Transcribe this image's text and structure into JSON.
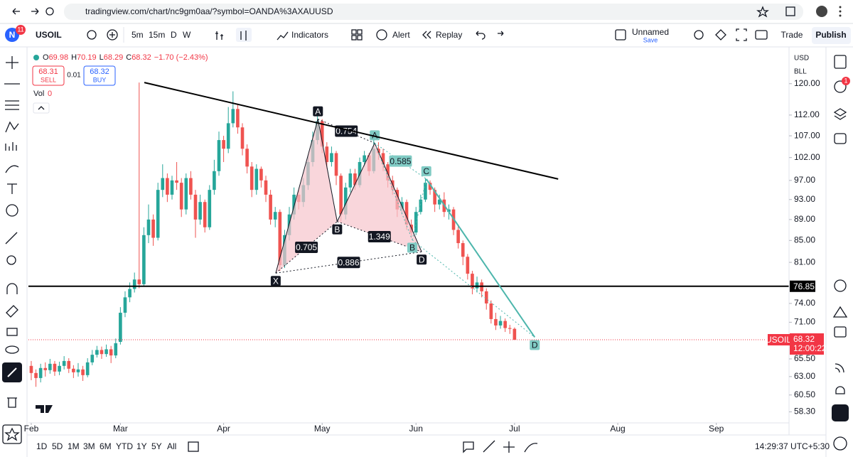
{
  "browser": {
    "url": "tradingview.com/chart/nc9gm0aa/?symbol=OANDA%3AXAUUSD"
  },
  "toolbar": {
    "logo": "N",
    "badge": "11",
    "symbol": "USOIL",
    "intervals": [
      "5m",
      "15m",
      "D",
      "W"
    ],
    "indicators": "Indicators",
    "alert": "Alert",
    "replay": "Replay",
    "layout_name": "Unnamed",
    "save": "Save",
    "trade": "Trade",
    "publish": "Publish"
  },
  "legend": {
    "ohlc": [
      "O",
      "69.98",
      "H",
      "70.19",
      "L",
      "68.29",
      "C",
      "68.32",
      "−1.70 (−2.43%)"
    ],
    "sell_price": "68.31",
    "sell": "SELL",
    "spread": "0.01",
    "buy_price": "68.32",
    "buy": "BUY",
    "volume_label": "Vol",
    "volume": "0"
  },
  "price_axis": {
    "currency": "USD",
    "unit": "BLL"
  },
  "right_sidebar": {
    "badge": "1"
  },
  "bottom_bar": {
    "ranges": [
      "1D",
      "5D",
      "1M",
      "3M",
      "6M",
      "YTD",
      "1Y",
      "5Y",
      "All"
    ],
    "clock": "14:29:37 UTC+5:30"
  },
  "chart_data": {
    "type": "candlestick",
    "log_scale": true,
    "grid": false,
    "up_color": "#26a69a",
    "down_color": "#ef5350",
    "xlim": [
      -0.6,
      161.5
    ],
    "ylim": [
      56.9,
      129.3
    ],
    "xticks": [
      {
        "value": 0,
        "label": "Feb"
      },
      {
        "value": 19,
        "label": "Mar"
      },
      {
        "value": 41,
        "label": "Apr"
      },
      {
        "value": 62,
        "label": "May"
      },
      {
        "value": 82,
        "label": "Jun"
      },
      {
        "value": 103,
        "label": "Jul"
      },
      {
        "value": 125,
        "label": "Aug"
      },
      {
        "value": 146,
        "label": "Sep"
      }
    ],
    "yticks": [
      {
        "value": 120,
        "label": "120.00"
      },
      {
        "value": 112,
        "label": "112.00"
      },
      {
        "value": 107,
        "label": "107.00"
      },
      {
        "value": 102,
        "label": "102.00"
      },
      {
        "value": 97,
        "label": "97.00"
      },
      {
        "value": 93,
        "label": "93.00"
      },
      {
        "value": 89,
        "label": "89.00"
      },
      {
        "value": 85,
        "label": "85.00"
      },
      {
        "value": 81,
        "label": "81.00"
      },
      {
        "value": 74,
        "label": "74.00"
      },
      {
        "value": 71,
        "label": "71.00"
      },
      {
        "value": 65.5,
        "label": "65.50"
      },
      {
        "value": 63,
        "label": "63.00"
      },
      {
        "value": 60.5,
        "label": "60.50"
      },
      {
        "value": 58.3,
        "label": "58.30"
      }
    ],
    "x": [
      0,
      1,
      2,
      3,
      4,
      5,
      6,
      7,
      8,
      9,
      10,
      11,
      12,
      13,
      14,
      15,
      16,
      17,
      18,
      19,
      20,
      21,
      22,
      23,
      24,
      25,
      26,
      27,
      28,
      29,
      30,
      31,
      32,
      33,
      34,
      35,
      36,
      37,
      38,
      39,
      40,
      41,
      42,
      43,
      44,
      45,
      46,
      47,
      48,
      49,
      50,
      51,
      52,
      53,
      54,
      55,
      56,
      57,
      58,
      59,
      60,
      61,
      62,
      63,
      64,
      65,
      66,
      67,
      68,
      69,
      70,
      71,
      72,
      73,
      74,
      75,
      76,
      77,
      78,
      79,
      80,
      81,
      82,
      83,
      84,
      85,
      86,
      87,
      88,
      89,
      90,
      91,
      92,
      93,
      94,
      95,
      96,
      97,
      98,
      99,
      100,
      101,
      102,
      103
    ],
    "open": [
      64.5,
      63.5,
      62.8,
      64.2,
      63.9,
      64.8,
      63.7,
      64.5,
      65.2,
      64.1,
      63.6,
      64.0,
      63.2,
      65.0,
      66.1,
      66.8,
      66.2,
      66.9,
      66.0,
      68.0,
      72.5,
      75.0,
      76.4,
      78.0,
      77.2,
      86.0,
      89.0,
      85.5,
      95.0,
      97.5,
      94.0,
      97.0,
      96.5,
      91.0,
      97.5,
      94.0,
      89.0,
      92.5,
      87.5,
      95.0,
      99.0,
      106.0,
      104.0,
      110.0,
      113.5,
      109.0,
      104.0,
      100.0,
      95.0,
      99.5,
      97.0,
      94.0,
      89.0,
      90.5,
      80.5,
      86.0,
      90.0,
      94.0,
      92.5,
      96.0,
      101.0,
      106.0,
      110.5,
      104.5,
      101.0,
      103.0,
      98.0,
      90.0,
      95.5,
      98.5,
      96.0,
      101.0,
      102.5,
      99.0,
      104.0,
      103.0,
      100.5,
      97.0,
      95.0,
      91.0,
      92.5,
      88.0,
      86.5,
      90.5,
      93.0,
      96.5,
      95.0,
      92.0,
      93.0,
      90.5,
      91.0,
      87.0,
      84.5,
      82.0,
      79.0,
      76.5,
      77.5,
      76.0,
      74.0,
      71.5,
      70.5,
      71.2,
      70.1,
      69.98
    ],
    "high": [
      65.2,
      64.0,
      64.8,
      65.0,
      65.5,
      65.2,
      65.1,
      65.9,
      65.6,
      64.6,
      64.9,
      64.5,
      65.6,
      66.8,
      67.4,
      67.3,
      67.6,
      67.4,
      68.5,
      73.4,
      76.0,
      77.5,
      79.2,
      120.3,
      87.5,
      92.0,
      90.0,
      96.5,
      100.5,
      98.5,
      98.0,
      101.0,
      97.5,
      98.5,
      99.0,
      95.0,
      94.0,
      93.0,
      96.0,
      101.5,
      108.0,
      107.0,
      114.0,
      118.0,
      114.5,
      110.0,
      105.0,
      101.0,
      100.5,
      100.0,
      98.0,
      95.0,
      91.5,
      91.0,
      87.0,
      91.5,
      95.5,
      95.0,
      97.5,
      102.5,
      108.0,
      112.0,
      111.0,
      105.5,
      104.5,
      103.5,
      98.5,
      96.5,
      99.5,
      99.5,
      102.0,
      103.5,
      103.0,
      106.5,
      105.5,
      104.0,
      101.0,
      98.0,
      95.5,
      93.5,
      93.0,
      89.0,
      91.5,
      94.0,
      97.5,
      97.0,
      95.5,
      94.0,
      94.5,
      92.0,
      91.5,
      88.0,
      85.0,
      82.5,
      79.5,
      78.5,
      78.0,
      76.5,
      74.5,
      72.5,
      72.0,
      71.6,
      70.6,
      70.19
    ],
    "low": [
      62.5,
      61.6,
      62.2,
      63.0,
      63.4,
      63.1,
      63.2,
      64.0,
      63.5,
      62.8,
      63.0,
      62.4,
      62.9,
      64.6,
      65.7,
      65.5,
      65.8,
      64.9,
      65.6,
      67.6,
      71.8,
      74.2,
      75.8,
      76.5,
      76.9,
      84.5,
      84.0,
      85.0,
      93.5,
      92.5,
      93.0,
      95.0,
      89.5,
      90.0,
      93.0,
      85.5,
      88.0,
      86.5,
      87.0,
      94.0,
      98.0,
      101.0,
      103.0,
      109.0,
      107.5,
      102.5,
      98.5,
      93.5,
      94.0,
      95.5,
      92.5,
      88.0,
      87.5,
      79.5,
      80.0,
      85.0,
      89.0,
      91.0,
      91.5,
      95.0,
      100.0,
      105.0,
      103.0,
      99.5,
      100.0,
      96.0,
      88.5,
      89.0,
      94.5,
      95.0,
      95.5,
      100.0,
      98.0,
      98.5,
      101.5,
      99.0,
      95.5,
      94.0,
      89.5,
      90.0,
      87.0,
      85.5,
      86.0,
      90.0,
      92.5,
      94.0,
      90.5,
      91.0,
      89.5,
      89.0,
      86.0,
      83.5,
      80.5,
      78.0,
      75.5,
      75.8,
      75.0,
      73.0,
      70.8,
      69.8,
      70.0,
      69.5,
      69.2,
      68.29
    ],
    "close": [
      63.5,
      62.8,
      64.2,
      63.9,
      64.8,
      63.7,
      64.5,
      65.2,
      64.1,
      63.6,
      64.0,
      63.2,
      65.0,
      66.1,
      66.8,
      66.2,
      66.9,
      66.0,
      67.8,
      72.5,
      75.0,
      76.4,
      78.0,
      77.2,
      86.0,
      89.0,
      85.5,
      95.0,
      97.5,
      94.0,
      97.0,
      96.5,
      91.0,
      97.5,
      94.0,
      89.0,
      92.5,
      87.5,
      95.0,
      99.0,
      106.0,
      104.0,
      110.0,
      113.5,
      109.0,
      104.0,
      100.0,
      95.0,
      99.5,
      97.0,
      94.0,
      89.0,
      90.5,
      80.5,
      86.0,
      90.0,
      94.0,
      92.5,
      96.0,
      101.0,
      106.0,
      110.5,
      104.5,
      101.0,
      103.0,
      98.0,
      90.0,
      95.5,
      98.5,
      96.0,
      101.0,
      102.5,
      99.0,
      104.0,
      103.0,
      100.5,
      97.0,
      95.0,
      91.0,
      92.5,
      88.0,
      86.5,
      90.5,
      93.0,
      96.5,
      95.0,
      92.0,
      93.0,
      90.5,
      91.0,
      87.0,
      84.5,
      82.0,
      79.0,
      76.5,
      77.5,
      76.0,
      74.0,
      71.5,
      70.5,
      71.2,
      70.1,
      69.98,
      68.32
    ],
    "trend_lines": [
      {
        "color": "#000000",
        "points": [
          {
            "x": 24.1,
            "y": 120.3
          },
          {
            "x": 112.3,
            "y": 97.3
          }
        ]
      }
    ],
    "horizontal_line": {
      "value": 76.85,
      "color": "#000000"
    },
    "price_tag": {
      "symbol": "USOIL",
      "value": 68.32,
      "countdown": "12:00:22",
      "color": "#f23645"
    },
    "patterns": [
      {
        "line_color": "#131722",
        "fill_color": "#f7c5cc",
        "label_color": "#131722",
        "points": [
          {
            "label": "X",
            "x": 52.1,
            "y": 79.1
          },
          {
            "label": "A",
            "x": 61.1,
            "y": 111.0
          },
          {
            "label": "B",
            "x": 65.2,
            "y": 88.6
          },
          {
            "label": null,
            "x": 73.2,
            "y": 105.3
          },
          {
            "label": "D",
            "x": 83.2,
            "y": 82.9
          }
        ],
        "ratios": [
          "0.754",
          "0.705",
          "0.886",
          "1.349"
        ]
      },
      {
        "line_color": "#4db6ac",
        "label_color": "#80cbc4",
        "points": [
          {
            "label": "A",
            "x": 73.2,
            "y": 105.3
          },
          {
            "label": "B",
            "x": 81.2,
            "y": 85.1
          },
          {
            "label": "C",
            "x": 84.2,
            "y": 97.3
          },
          {
            "label": "D",
            "x": 107.3,
            "y": 68.7
          }
        ],
        "ratios": [
          "0.585"
        ]
      }
    ]
  }
}
